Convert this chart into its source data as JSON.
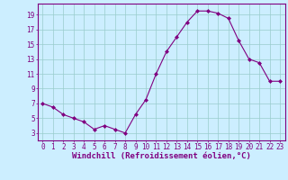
{
  "x": [
    0,
    1,
    2,
    3,
    4,
    5,
    6,
    7,
    8,
    9,
    10,
    11,
    12,
    13,
    14,
    15,
    16,
    17,
    18,
    19,
    20,
    21,
    22,
    23
  ],
  "y": [
    7,
    6.5,
    5.5,
    5,
    4.5,
    3.5,
    4,
    3.5,
    3,
    5.5,
    7.5,
    11,
    14,
    16,
    18,
    19.5,
    19.5,
    19.2,
    18.5,
    15.5,
    13,
    12.5,
    10,
    10
  ],
  "line_color": "#800080",
  "marker": "D",
  "marker_size": 2.0,
  "bg_color": "#cceeff",
  "grid_color": "#99cccc",
  "xlabel": "Windchill (Refroidissement éolien,°C)",
  "xlabel_fontsize": 6.5,
  "xlabel_color": "#800080",
  "yticks": [
    3,
    5,
    7,
    9,
    11,
    13,
    15,
    17,
    19
  ],
  "xticks": [
    0,
    1,
    2,
    3,
    4,
    5,
    6,
    7,
    8,
    9,
    10,
    11,
    12,
    13,
    14,
    15,
    16,
    17,
    18,
    19,
    20,
    21,
    22,
    23
  ],
  "ylim": [
    2.0,
    20.5
  ],
  "xlim": [
    -0.5,
    23.5
  ],
  "tick_color": "#800080",
  "tick_fontsize": 5.5,
  "spine_color": "#800080"
}
